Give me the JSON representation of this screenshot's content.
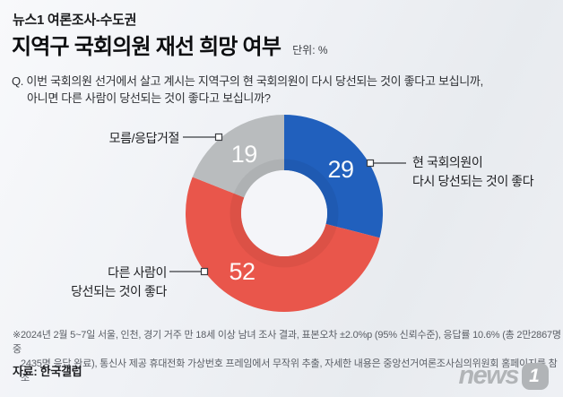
{
  "header": {
    "kicker": "뉴스1 여론조사-수도권",
    "title": "지역구 국회의원 재선 희망 여부",
    "unit_label": "단위: %",
    "question_line1": "Q. 이번 국회의원 선거에서 살고 계시는 지역구의 현 국회의원이 다시 당선되는 것이 좋다고 보십니까,",
    "question_line2": "아니면 다른 사람이 당선되는 것이 좋다고 보십니까?"
  },
  "chart_data": {
    "type": "pie",
    "donut": true,
    "title": "지역구 국회의원 재선 희망 여부",
    "unit": "%",
    "start_angle_deg": 0,
    "direction": "clockwise",
    "segments": [
      {
        "label": "현 국회의원이 다시 당선되는 것이 좋다",
        "value": 29,
        "color": "#2160bd",
        "label_angle_deg": 52
      },
      {
        "label": "다른 사람이 당선되는 것이 좋다",
        "value": 52,
        "color": "#e9564b",
        "label_angle_deg": 216
      },
      {
        "label": "모름/응답거절",
        "value": 19,
        "color": "#b9bcbe",
        "label_angle_deg": 326
      }
    ]
  },
  "callouts": {
    "right": {
      "line1": "현 국회의원이",
      "line2": "다시 당선되는 것이 좋다"
    },
    "top_left": {
      "line1": "모름/응답거절"
    },
    "bottom_left": {
      "line1": "다른 사람이",
      "line2": "당선되는 것이 좋다"
    }
  },
  "footer": {
    "note_line1": "※2024년 2월 5~7일 서울, 인천, 경기 거주 만 18세 이상 남녀 조사 결과, 표본오차 ±2.0%p (95% 신뢰수준), 응답률 10.6% (총 2만2867명 중",
    "note_line2": "2435명 응답 완료), 통신사 제공 휴대전화 가상번호 프레임에서 무작위 추출, 자세한 내용은 중앙선거여론조사심의위원회 홈페이지를 참조",
    "source": "자료: 한국갤럽",
    "logo_text": "news",
    "logo_badge": "1"
  }
}
